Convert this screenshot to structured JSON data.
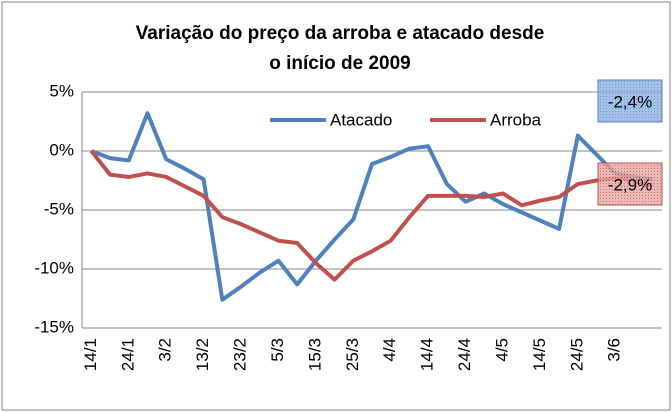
{
  "chart_data": {
    "type": "line",
    "title": [
      "Variação do preço da arroba e atacado desde",
      "o início de 2009"
    ],
    "categories": [
      "14/1",
      null,
      "24/1",
      null,
      "3/2",
      null,
      "13/2",
      null,
      "23/2",
      null,
      "5/3",
      null,
      "15/3",
      null,
      "25/3",
      null,
      "4/4",
      null,
      "14/4",
      null,
      "24/4",
      null,
      "4/5",
      null,
      "14/5",
      null,
      "24/5",
      null,
      "3/6",
      null,
      null
    ],
    "series": [
      {
        "name": "Atacado",
        "color": "#4f81bd",
        "values": [
          0,
          -0.6,
          -0.8,
          3.2,
          -0.7,
          -1.5,
          -2.4,
          -12.6,
          -11.5,
          -10.3,
          -9.3,
          -11.3,
          -9.3,
          -7.5,
          -5.8,
          -1.1,
          -0.5,
          0.2,
          0.4,
          -2.8,
          -4.3,
          -3.6,
          -4.5,
          -5.2,
          -5.9,
          -6.6,
          1.3,
          -0.3,
          -1.9,
          -2.2,
          -2.4
        ]
      },
      {
        "name": "Arroba",
        "color": "#c0504d",
        "values": [
          0,
          -2.0,
          -2.2,
          -1.9,
          -2.2,
          -3.0,
          -3.8,
          -5.6,
          -6.2,
          -6.9,
          -7.6,
          -7.8,
          -9.5,
          -10.9,
          -9.3,
          -8.5,
          -7.6,
          -5.6,
          -3.8,
          -3.8,
          -3.8,
          -3.9,
          -3.6,
          -4.6,
          -4.2,
          -3.9,
          -2.8,
          -2.5,
          -2.3,
          -2.5,
          -2.9
        ]
      }
    ],
    "ylim": [
      -15,
      5
    ],
    "yticks": [
      {
        "value": -15,
        "label": "-15%"
      },
      {
        "value": -10,
        "label": "-10%"
      },
      {
        "value": -5,
        "label": "-5%"
      },
      {
        "value": 0,
        "label": "0%"
      },
      {
        "value": 5,
        "label": "5%"
      }
    ],
    "grid": true,
    "legend": "top",
    "annotations": [
      {
        "text": "-2,4%",
        "color": "#4f81bd"
      },
      {
        "text": "-2,9%",
        "color": "#c0504d"
      }
    ]
  }
}
